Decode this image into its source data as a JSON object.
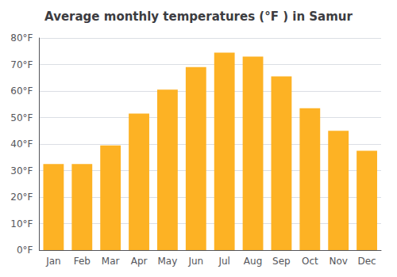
{
  "chart_data": {
    "type": "bar",
    "title": "Average monthly temperatures (°F ) in Samur",
    "categories": [
      "Jan",
      "Feb",
      "Mar",
      "Apr",
      "May",
      "Jun",
      "Jul",
      "Aug",
      "Sep",
      "Oct",
      "Nov",
      "Dec"
    ],
    "values": [
      32.5,
      32.5,
      39.5,
      51.5,
      60.5,
      69.0,
      74.5,
      73.0,
      65.5,
      53.5,
      45.0,
      37.5
    ],
    "color": "#FDB224",
    "ylim": [
      0,
      80
    ],
    "yticks": [
      {
        "value": 0,
        "label": "0°F"
      },
      {
        "value": 10,
        "label": "10°F"
      },
      {
        "value": 20,
        "label": "20°F"
      },
      {
        "value": 30,
        "label": "30°F"
      },
      {
        "value": 40,
        "label": "40°F"
      },
      {
        "value": 50,
        "label": "50°F"
      },
      {
        "value": 60,
        "label": "60°F"
      },
      {
        "value": 70,
        "label": "70°F"
      },
      {
        "value": 80,
        "label": "80°F"
      }
    ],
    "grid": true
  }
}
